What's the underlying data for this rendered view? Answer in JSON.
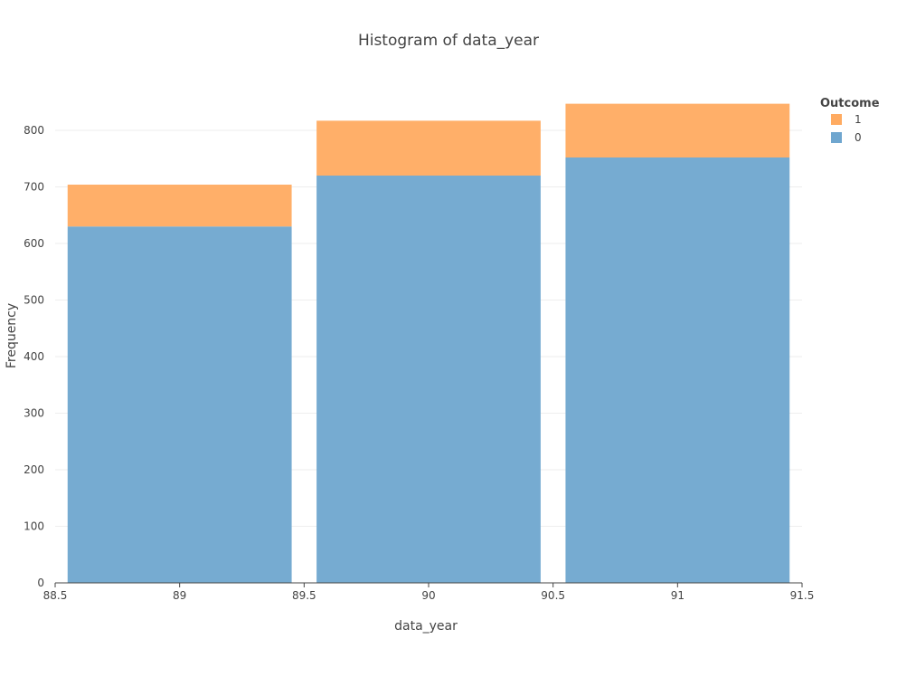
{
  "chart_data": {
    "type": "bar",
    "barmode": "stack",
    "title": "Histogram of data_year",
    "xlabel": "data_year",
    "ylabel": "Frequency",
    "xlim": [
      88.5,
      91.5
    ],
    "ylim": [
      0,
      880
    ],
    "x_ticks": [
      "88.5",
      "89",
      "89.5",
      "90",
      "90.5",
      "91",
      "91.5"
    ],
    "y_ticks": [
      "0",
      "100",
      "200",
      "300",
      "400",
      "500",
      "600",
      "700",
      "800"
    ],
    "bins": [
      89,
      90,
      91
    ],
    "bin_width": 1,
    "series": [
      {
        "name": "0",
        "color": "#6fa6cf",
        "values": [
          630,
          720,
          752
        ]
      },
      {
        "name": "1",
        "color": "#ffab61",
        "values": [
          74,
          97,
          95
        ]
      }
    ],
    "legend": {
      "title": "Outcome",
      "position": "top-right",
      "items": [
        "1",
        "0"
      ]
    },
    "grid": true
  }
}
